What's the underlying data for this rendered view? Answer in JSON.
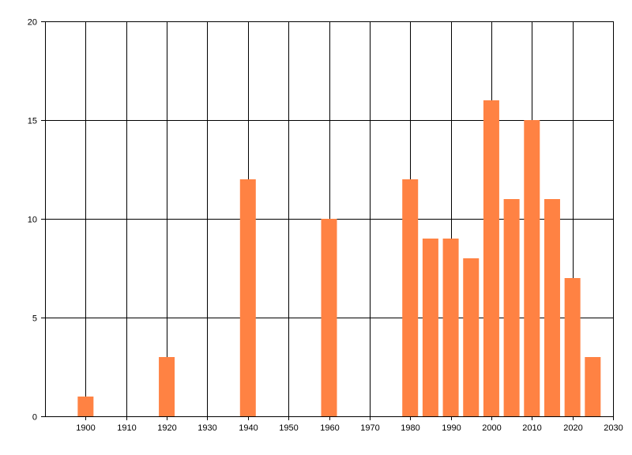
{
  "colors": {
    "bar": "#FF8243",
    "grid": "#000000",
    "axis": "#000000",
    "background": "#FFFFFF"
  },
  "chart_data": {
    "type": "bar",
    "title": "",
    "xlabel": "",
    "ylabel": "",
    "grid": true,
    "legend": "none",
    "xlim": [
      1890,
      2030
    ],
    "ylim": [
      0,
      20
    ],
    "xticks": [
      1900,
      1910,
      1920,
      1930,
      1940,
      1950,
      1960,
      1970,
      1980,
      1990,
      2000,
      2010,
      2020,
      2030
    ],
    "yticks": [
      0,
      5,
      10,
      15,
      20
    ],
    "x": [
      1900,
      1920,
      1940,
      1960,
      1980,
      1985,
      1990,
      1995,
      2000,
      2005,
      2010,
      2015,
      2020,
      2025
    ],
    "values": [
      1,
      3,
      12,
      10,
      12,
      9,
      9,
      8,
      16,
      11,
      15,
      11,
      7,
      3
    ]
  }
}
